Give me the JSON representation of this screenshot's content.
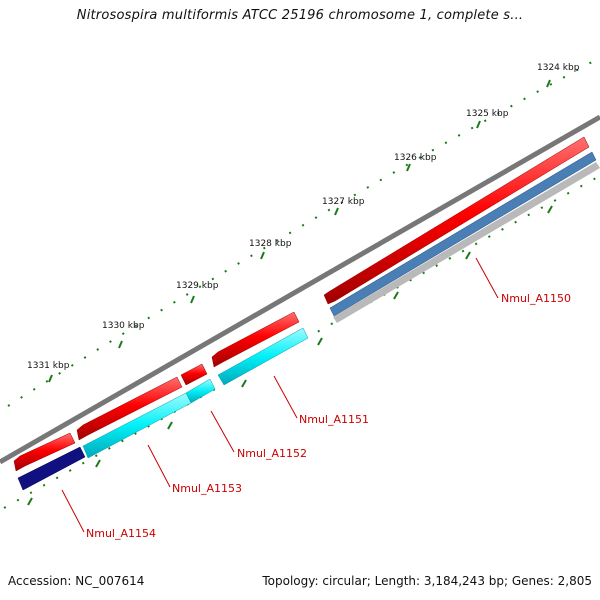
{
  "title": "Nitrosospira multiformis ATCC 25196 chromosome 1, complete s...",
  "ticks": [
    "1324 kbp",
    "1325 kbp",
    "1326 kbp",
    "1327 kbp",
    "1328 kbp",
    "1329 kbp",
    "1330 kbp",
    "1331 kbp"
  ],
  "genes": [
    "Nmul_A1150",
    "Nmul_A1151",
    "Nmul_A1152",
    "Nmul_A1153",
    "Nmul_A1154"
  ],
  "footer": {
    "accession": "Accession: NC_007614",
    "summary": "Topology: circular; Length: 3,184,243 bp; Genes: 2,805"
  },
  "colors": {
    "backbone": "#777777",
    "cds_red": "#ee0000",
    "cds_cyan": "#00e5f0",
    "cds_blue": "#4a7fb5",
    "cds_navy": "#101080",
    "ticks": "#1a7a1a",
    "label": "#cc0000"
  }
}
